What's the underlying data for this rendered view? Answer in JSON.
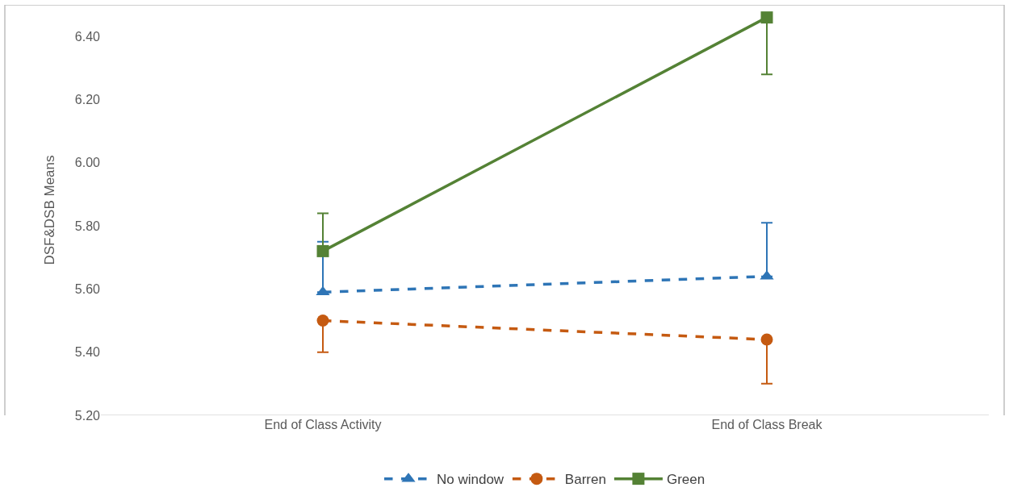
{
  "chart_data": {
    "type": "line",
    "ylabel": "DSF&DSB Means",
    "categories": [
      "End of Class Activity",
      "End of Class Break"
    ],
    "ylim": [
      5.2,
      6.5
    ],
    "yticks": [
      {
        "value": 5.2,
        "label": "5.20"
      },
      {
        "value": 5.4,
        "label": "5.40"
      },
      {
        "value": 5.6,
        "label": "5.60"
      },
      {
        "value": 5.8,
        "label": "5.80"
      },
      {
        "value": 6.0,
        "label": "6.00"
      },
      {
        "value": 6.2,
        "label": "6.20"
      },
      {
        "value": 6.4,
        "label": "6.40"
      }
    ],
    "grid": false,
    "legend": "bottom",
    "series": [
      {
        "name": "No window",
        "color": "#2e75b6",
        "marker": "triangle",
        "line_style": "dashed",
        "values": [
          5.59,
          5.64
        ],
        "errors": [
          [
            5.59,
            5.75
          ],
          [
            5.64,
            5.81
          ]
        ]
      },
      {
        "name": "Barren",
        "color": "#c55a11",
        "marker": "circle",
        "line_style": "dashed",
        "values": [
          5.5,
          5.44
        ],
        "errors": [
          [
            5.4,
            5.5
          ],
          [
            5.3,
            5.44
          ]
        ]
      },
      {
        "name": "Green",
        "color": "#548235",
        "marker": "square",
        "line_style": "solid",
        "values": [
          5.72,
          6.46
        ],
        "errors": [
          [
            5.72,
            5.84
          ],
          [
            6.28,
            6.46
          ]
        ]
      }
    ]
  }
}
